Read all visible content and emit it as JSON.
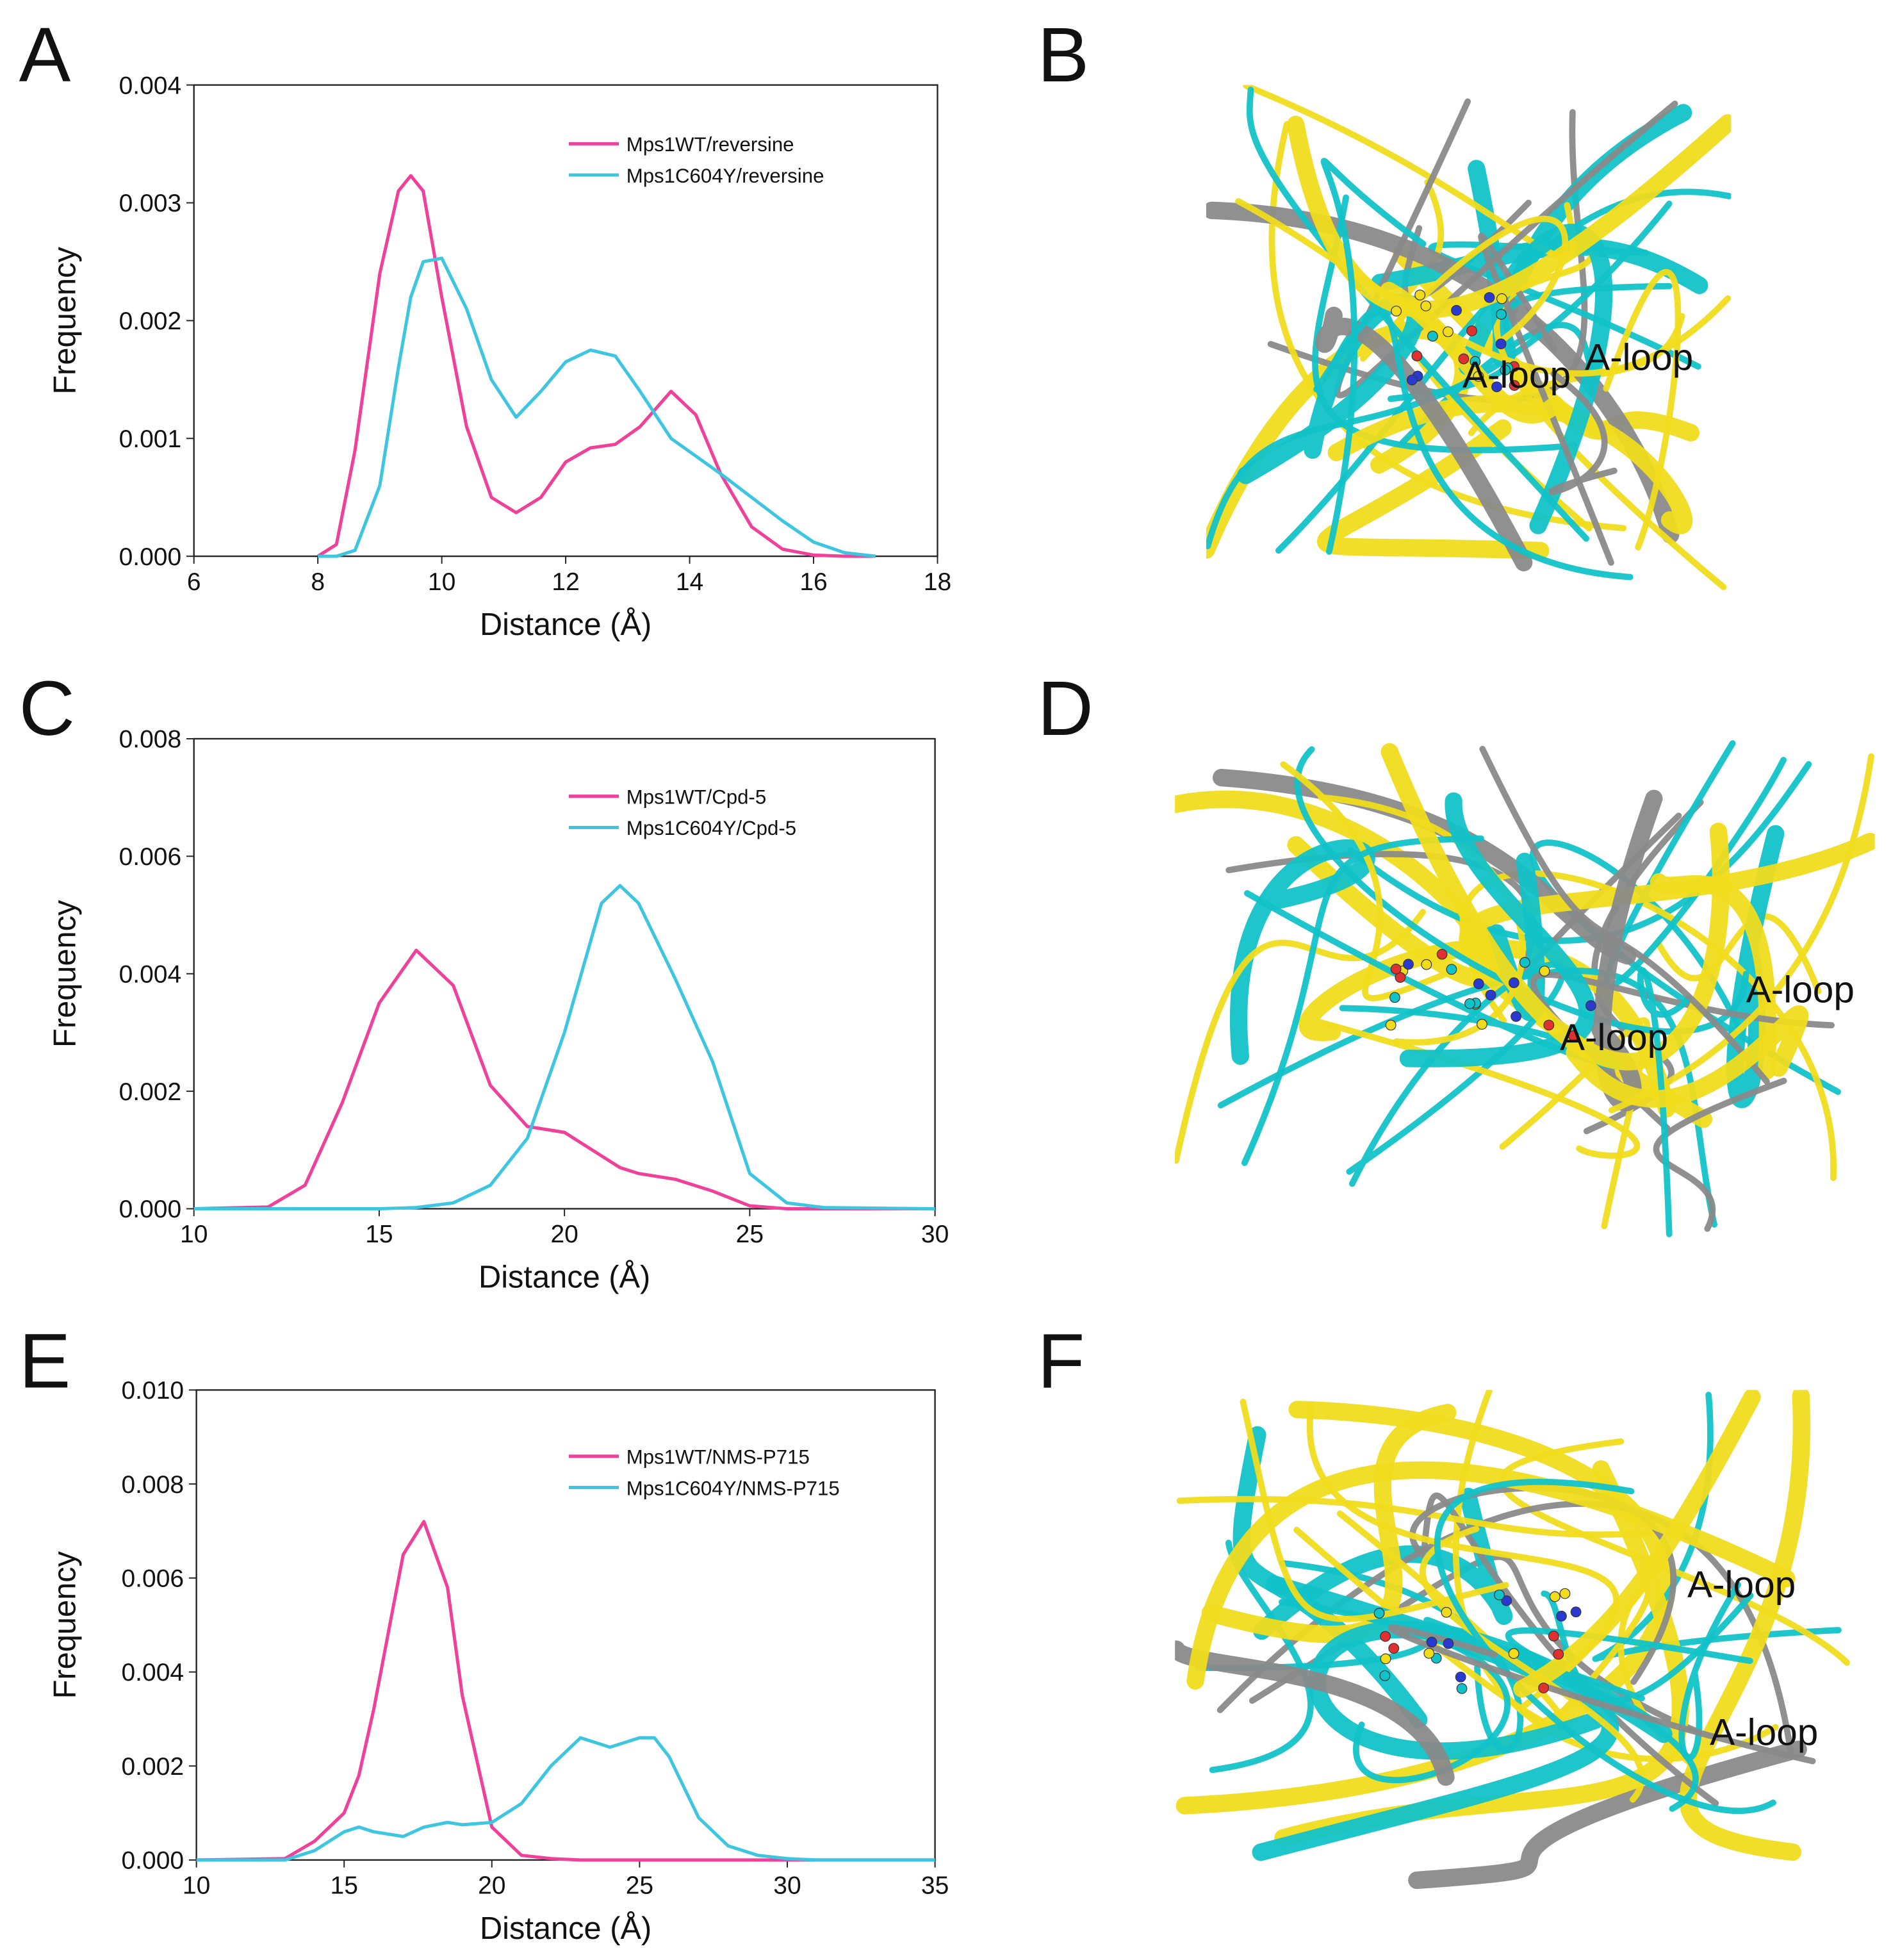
{
  "chart_data": [
    {
      "type": "line",
      "panel": "A",
      "xlabel": "Distance (Å)",
      "ylabel": "Frequency",
      "x": [
        8,
        8.3,
        8.6,
        9,
        9.3,
        9.5,
        9.7,
        10,
        10.4,
        10.8,
        11.2,
        11.6,
        12,
        12.4,
        12.8,
        13.2,
        13.7,
        14.1,
        14.5,
        15,
        15.5,
        16,
        16.5,
        17
      ],
      "series": [
        {
          "name": "Mps1WT/reversine",
          "color": "#ef4199",
          "values": [
            0,
            0.0001,
            0.0009,
            0.0024,
            0.0031,
            0.00323,
            0.0031,
            0.0022,
            0.0011,
            0.0005,
            0.00037,
            0.0005,
            0.0008,
            0.00092,
            0.00095,
            0.0011,
            0.0014,
            0.0012,
            0.0007,
            0.00025,
            6e-05,
            1e-05,
            0,
            0
          ]
        },
        {
          "name": "Mps1C604Y/reversine",
          "color": "#3ec6e0",
          "values": [
            0,
            0,
            5e-05,
            0.0006,
            0.0016,
            0.0022,
            0.0025,
            0.00253,
            0.0021,
            0.0015,
            0.00118,
            0.0014,
            0.00165,
            0.00175,
            0.0017,
            0.0014,
            0.001,
            0.00085,
            0.0007,
            0.0005,
            0.0003,
            0.00012,
            3e-05,
            0
          ]
        }
      ],
      "xlim": [
        6,
        18
      ],
      "xticks": [
        6,
        8,
        10,
        12,
        14,
        16,
        18
      ],
      "ylim": [
        0,
        0.004
      ],
      "yticks": [
        {
          "value": 0,
          "label": "0.000"
        },
        0.001,
        0.002,
        0.003,
        0.004
      ]
    },
    {
      "type": "line",
      "panel": "C",
      "xlabel": "Distance (Å)",
      "ylabel": "Frequency",
      "x": [
        10,
        12,
        13,
        14,
        15,
        16,
        17,
        18,
        19,
        20,
        21,
        21.5,
        22,
        23,
        24,
        25,
        26,
        27,
        30
      ],
      "series": [
        {
          "name": "Mps1WT/Cpd-5",
          "color": "#ef4199",
          "values": [
            0,
            3e-05,
            0.0004,
            0.0018,
            0.0035,
            0.0044,
            0.0038,
            0.0021,
            0.0014,
            0.0013,
            0.0009,
            0.0007,
            0.0006,
            0.0005,
            0.0003,
            5e-05,
            0,
            0,
            0
          ]
        },
        {
          "name": "Mps1C604Y/Cpd-5",
          "color": "#3ec6e0",
          "values": [
            0,
            0,
            0,
            0,
            0,
            2e-05,
            0.0001,
            0.0004,
            0.0012,
            0.003,
            0.0052,
            0.0055,
            0.0052,
            0.0039,
            0.0025,
            0.0006,
            0.0001,
            2e-05,
            0
          ]
        }
      ],
      "xlim": [
        10,
        30
      ],
      "xticks": [
        10,
        15,
        20,
        25,
        30
      ],
      "ylim": [
        0,
        0.008
      ],
      "yticks": [
        {
          "value": 0,
          "label": "0.000"
        },
        0.002,
        0.004,
        0.006,
        0.008
      ]
    },
    {
      "type": "line",
      "panel": "E",
      "xlabel": "Distance (Å)",
      "ylabel": "Frequency",
      "x": [
        10,
        13,
        14,
        15,
        15.5,
        16,
        17,
        17.7,
        18.5,
        19,
        20,
        21,
        22,
        23,
        24,
        25,
        25.5,
        26,
        27,
        28,
        29,
        30,
        31,
        32,
        35
      ],
      "series": [
        {
          "name": "Mps1WT/NMS-P715",
          "color": "#ef4199",
          "values": [
            0,
            3e-05,
            0.0004,
            0.001,
            0.0018,
            0.0032,
            0.0065,
            0.0072,
            0.0058,
            0.0035,
            0.0007,
            0.0001,
            3e-05,
            0,
            0,
            0,
            0,
            0,
            0,
            0,
            0,
            0,
            0,
            0,
            0
          ]
        },
        {
          "name": "Mps1C604Y/NMS-P715",
          "color": "#3ec6e0",
          "values": [
            0,
            0,
            0.0002,
            0.0006,
            0.0007,
            0.0006,
            0.0005,
            0.0007,
            0.0008,
            0.00075,
            0.0008,
            0.0012,
            0.002,
            0.0026,
            0.0024,
            0.0026,
            0.0026,
            0.0022,
            0.0009,
            0.0003,
            0.0001,
            3e-05,
            0,
            0,
            0
          ]
        }
      ],
      "xlim": [
        10,
        35
      ],
      "xticks": [
        10,
        15,
        20,
        25,
        30,
        35
      ],
      "ylim": [
        0,
        0.01
      ],
      "yticks": [
        {
          "value": 0,
          "label": "0.000"
        },
        0.002,
        0.004,
        0.006,
        0.008,
        {
          "value": 0.01,
          "label": "0.010"
        }
      ]
    }
  ],
  "structures": [
    {
      "panel": "B",
      "labels": [
        "A-loop",
        "A-loop"
      ]
    },
    {
      "panel": "D",
      "labels": [
        "A-loop",
        "A-loop"
      ]
    },
    {
      "panel": "F",
      "labels": [
        "A-loop",
        "A-loop"
      ]
    }
  ]
}
